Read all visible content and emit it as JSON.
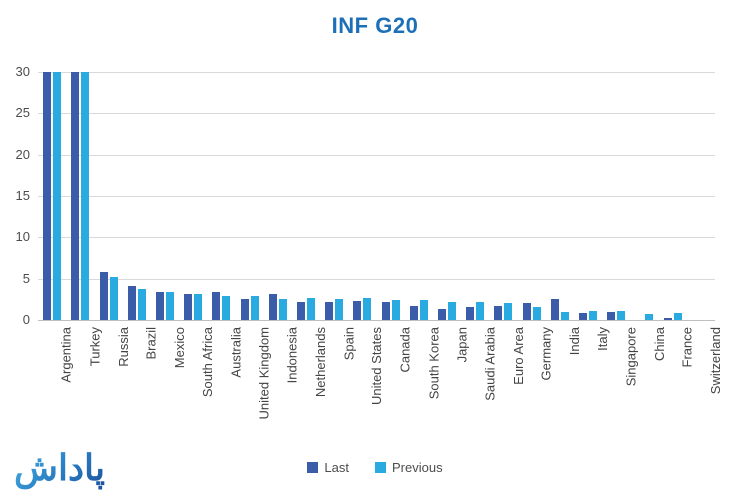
{
  "title": "INF G20",
  "title_color": "#1d70b8",
  "watermark_text": "پاداش",
  "legend": {
    "items": [
      {
        "label": "Last",
        "color": "#3b5ca8"
      },
      {
        "label": "Previous",
        "color": "#29abe2"
      }
    ]
  },
  "chart_data": {
    "type": "bar",
    "title": "INF G20",
    "xlabel": "",
    "ylabel": "",
    "ylim": [
      0,
      30
    ],
    "yticks": [
      0,
      5,
      10,
      15,
      20,
      25,
      30
    ],
    "grid": true,
    "legend_position": "bottom",
    "clipped_at_ymax": [
      "Argentina",
      "Turkey"
    ],
    "categories": [
      "Argentina",
      "Turkey",
      "Russia",
      "Brazil",
      "Mexico",
      "South Africa",
      "Australia",
      "United Kingdom",
      "Indonesia",
      "Netherlands",
      "Spain",
      "United States",
      "Canada",
      "South Korea",
      "Japan",
      "Saudi Arabia",
      "Euro Area",
      "Germany",
      "India",
      "Italy",
      "Singapore",
      "China",
      "France",
      "Switzerland"
    ],
    "series": [
      {
        "name": "Last",
        "color": "#3b5ca8",
        "values": [
          30,
          30,
          5.8,
          4.1,
          3.4,
          3.1,
          3.4,
          2.5,
          3.2,
          2.2,
          2.2,
          2.3,
          2.2,
          1.7,
          1.3,
          1.6,
          1.7,
          2.0,
          2.5,
          0.9,
          1.0,
          0,
          0.3,
          0
        ]
      },
      {
        "name": "Previous",
        "color": "#29abe2",
        "values": [
          30,
          30,
          5.2,
          3.8,
          3.4,
          3.1,
          2.9,
          2.9,
          2.6,
          2.7,
          2.6,
          2.7,
          2.4,
          2.4,
          2.2,
          2.2,
          2.1,
          1.6,
          1.0,
          1.1,
          1.1,
          0.7,
          0.8,
          0
        ]
      }
    ]
  }
}
